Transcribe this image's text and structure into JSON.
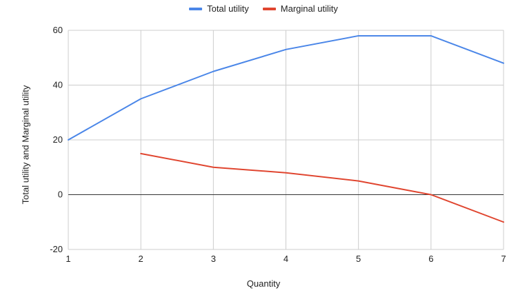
{
  "chart_data": {
    "type": "line",
    "x": [
      1,
      2,
      3,
      4,
      5,
      6,
      7
    ],
    "series": [
      {
        "name": "Total utility",
        "color": "#4a86e8",
        "values": [
          20,
          35,
          45,
          53,
          58,
          58,
          48
        ]
      },
      {
        "name": "Marginal utility",
        "color": "#e0452f",
        "values": [
          null,
          15,
          10,
          8,
          5,
          0,
          -10
        ]
      }
    ],
    "xlabel": "Quantity",
    "ylabel": "Total utility and Marginal utility",
    "xlim": [
      1,
      7
    ],
    "ylim": [
      -20,
      60
    ],
    "xticks": [
      1,
      2,
      3,
      4,
      5,
      6,
      7
    ],
    "yticks": [
      -20,
      0,
      20,
      40,
      60
    ],
    "grid": true,
    "legend_position": "top-center"
  }
}
